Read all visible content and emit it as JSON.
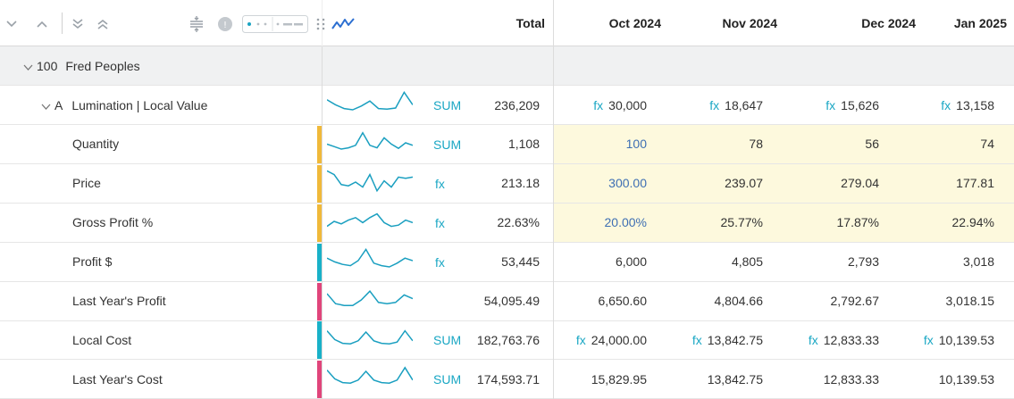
{
  "header": {
    "columns": [
      "Total",
      "Oct 2024",
      "Nov 2024",
      "Dec 2024",
      "Jan 2025"
    ],
    "tool_icons": [
      "chevron-down-icon",
      "chevron-up-icon",
      "collapse-all-icon",
      "expand-all-icon",
      "split-icon",
      "info-circle-icon",
      "display-toggle-icon",
      "drag-dots-icon",
      "sparkline-icon"
    ]
  },
  "group": {
    "id": "100",
    "name": "Fred Peoples"
  },
  "rows": [
    {
      "indent": "A",
      "label": "Lumination | Local Value",
      "stripe": "",
      "tag": "SUM",
      "total": "236,209",
      "values": [
        "30,000",
        "18,647",
        "15,626",
        "13,158"
      ],
      "fx": [
        true,
        true,
        true,
        true
      ],
      "highlight": false,
      "blue": false
    },
    {
      "indent": "",
      "label": "Quantity",
      "stripe": "#f0b93a",
      "tag": "SUM",
      "total": "1,108",
      "values": [
        "100",
        "78",
        "56",
        "74"
      ],
      "fx": [
        false,
        false,
        false,
        false
      ],
      "highlight": true,
      "blue": true
    },
    {
      "indent": "",
      "label": "Price",
      "stripe": "#f0b93a",
      "tag": "fx",
      "total": "213.18",
      "values": [
        "300.00",
        "239.07",
        "279.04",
        "177.81"
      ],
      "fx": [
        false,
        false,
        false,
        false
      ],
      "highlight": true,
      "blue": true
    },
    {
      "indent": "",
      "label": "Gross Profit %",
      "stripe": "#f0b93a",
      "tag": "fx",
      "total": "22.63%",
      "values": [
        "20.00%",
        "25.77%",
        "17.87%",
        "22.94%"
      ],
      "fx": [
        false,
        false,
        false,
        false
      ],
      "highlight": true,
      "blue": true
    },
    {
      "indent": "",
      "label": "Profit $",
      "stripe": "#19b1c8",
      "tag": "fx",
      "total": "53,445",
      "values": [
        "6,000",
        "4,805",
        "2,793",
        "3,018"
      ],
      "fx": [
        false,
        false,
        false,
        false
      ],
      "highlight": false,
      "blue": false
    },
    {
      "indent": "",
      "label": "Last Year's Profit",
      "stripe": "#e0457b",
      "tag": "",
      "total": "54,095.49",
      "values": [
        "6,650.60",
        "4,804.66",
        "2,792.67",
        "3,018.15"
      ],
      "fx": [
        false,
        false,
        false,
        false
      ],
      "highlight": false,
      "blue": false
    },
    {
      "indent": "",
      "label": "Local Cost",
      "stripe": "#19b1c8",
      "tag": "SUM",
      "total": "182,763.76",
      "values": [
        "24,000.00",
        "13,842.75",
        "12,833.33",
        "10,139.53"
      ],
      "fx": [
        true,
        true,
        true,
        true
      ],
      "highlight": false,
      "blue": false
    },
    {
      "indent": "",
      "label": "Last Year's Cost",
      "stripe": "#e0457b",
      "tag": "SUM",
      "total": "174,593.71",
      "values": [
        "15,829.95",
        "13,842.75",
        "12,833.33",
        "10,139.53"
      ],
      "fx": [
        false,
        false,
        false,
        false
      ],
      "highlight": false,
      "blue": false
    }
  ],
  "fx_label": "fx",
  "sparkline_color": "#1a9fc0",
  "sparklines": [
    [
      0.35,
      0.55,
      0.7,
      0.75,
      0.6,
      0.4,
      0.7,
      0.72,
      0.68,
      0.05,
      0.55
    ],
    [
      0.55,
      0.65,
      0.75,
      0.7,
      0.6,
      0.1,
      0.6,
      0.7,
      0.3,
      0.55,
      0.72,
      0.5,
      0.6
    ],
    [
      0.05,
      0.2,
      0.6,
      0.65,
      0.5,
      0.7,
      0.2,
      0.85,
      0.45,
      0.7,
      0.3,
      0.35,
      0.3
    ],
    [
      0.7,
      0.5,
      0.6,
      0.45,
      0.35,
      0.55,
      0.35,
      0.2,
      0.55,
      0.7,
      0.65,
      0.45,
      0.55
    ],
    [
      0.4,
      0.55,
      0.65,
      0.7,
      0.5,
      0.05,
      0.6,
      0.7,
      0.75,
      0.6,
      0.4,
      0.5
    ],
    [
      0.25,
      0.65,
      0.72,
      0.72,
      0.5,
      0.15,
      0.6,
      0.65,
      0.6,
      0.3,
      0.45
    ],
    [
      0.2,
      0.55,
      0.7,
      0.72,
      0.6,
      0.25,
      0.6,
      0.7,
      0.72,
      0.65,
      0.2,
      0.6
    ],
    [
      0.2,
      0.55,
      0.7,
      0.72,
      0.6,
      0.25,
      0.6,
      0.7,
      0.72,
      0.6,
      0.1,
      0.6
    ]
  ]
}
